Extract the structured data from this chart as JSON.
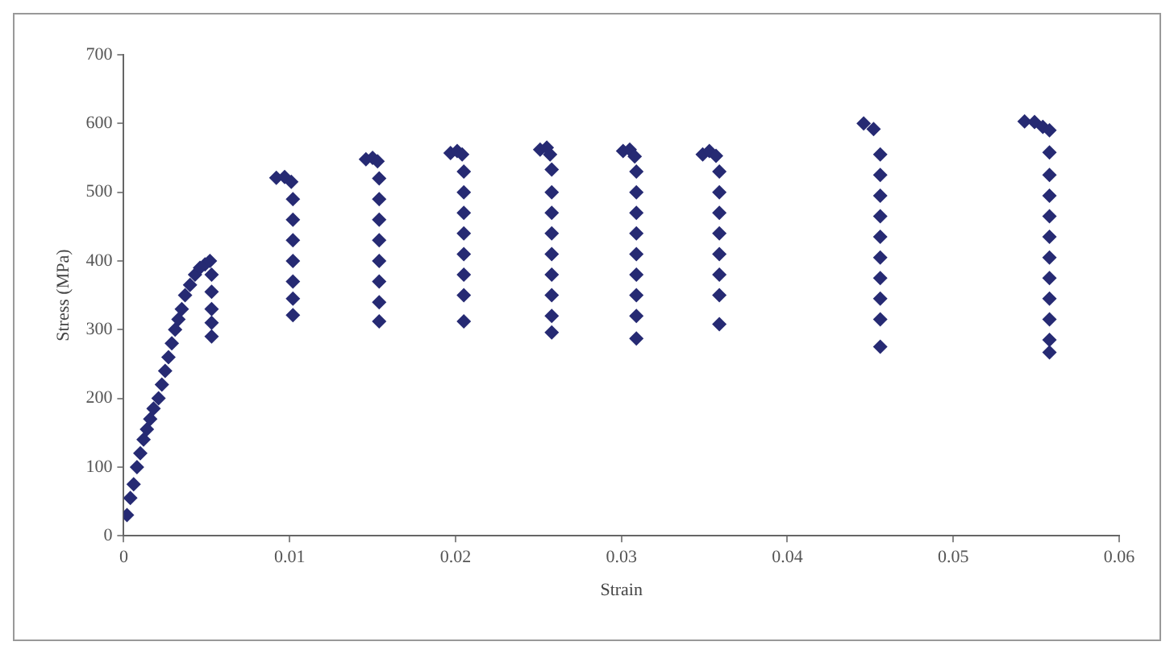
{
  "chart_data": {
    "type": "scatter",
    "xlabel": "Strain",
    "ylabel": "Stress (MPa)",
    "xlim": [
      0,
      0.06
    ],
    "xticks": [
      0,
      0.01,
      0.02,
      0.03,
      0.04,
      0.05,
      0.06
    ],
    "ylim": [
      0,
      700
    ],
    "yticks": [
      0,
      100,
      200,
      300,
      400,
      500,
      600,
      700
    ],
    "grid": false,
    "legend": false,
    "marker": "diamond",
    "series": [
      {
        "color": "#262a73",
        "x": [
          0.0002,
          0.0004,
          0.0006,
          0.0008,
          0.001,
          0.0012,
          0.0014,
          0.0016,
          0.0018,
          0.0021,
          0.0023,
          0.0025,
          0.0027,
          0.0029,
          0.0031,
          0.0033,
          0.0035,
          0.0037,
          0.004,
          0.0043,
          0.0046,
          0.0049,
          0.0052,
          0.0053,
          0.0053,
          0.0053,
          0.0053,
          0.0053,
          0.0092,
          0.0097,
          0.0101,
          0.0102,
          0.0102,
          0.0102,
          0.0102,
          0.0102,
          0.0102,
          0.0102,
          0.0146,
          0.015,
          0.0153,
          0.0154,
          0.0154,
          0.0154,
          0.0154,
          0.0154,
          0.0154,
          0.0154,
          0.0154,
          0.0197,
          0.0201,
          0.0204,
          0.0205,
          0.0205,
          0.0205,
          0.0205,
          0.0205,
          0.0205,
          0.0205,
          0.0205,
          0.0251,
          0.0255,
          0.0257,
          0.0258,
          0.0258,
          0.0258,
          0.0258,
          0.0258,
          0.0258,
          0.0258,
          0.0258,
          0.0258,
          0.0301,
          0.0305,
          0.0308,
          0.0309,
          0.0309,
          0.0309,
          0.0309,
          0.0309,
          0.0309,
          0.0309,
          0.0309,
          0.0309,
          0.0349,
          0.0353,
          0.0357,
          0.0359,
          0.0359,
          0.0359,
          0.0359,
          0.0359,
          0.0359,
          0.0359,
          0.0359,
          0.0446,
          0.0452,
          0.0456,
          0.0456,
          0.0456,
          0.0456,
          0.0456,
          0.0456,
          0.0456,
          0.0456,
          0.0456,
          0.0456,
          0.0543,
          0.0549,
          0.0554,
          0.0558,
          0.0558,
          0.0558,
          0.0558,
          0.0558,
          0.0558,
          0.0558,
          0.0558,
          0.0558,
          0.0558,
          0.0558,
          0.0558
        ],
        "values": [
          30,
          55,
          75,
          100,
          120,
          140,
          155,
          170,
          185,
          200,
          220,
          240,
          260,
          280,
          300,
          315,
          330,
          350,
          365,
          380,
          390,
          395,
          400,
          380,
          355,
          330,
          310,
          290,
          521,
          522,
          515,
          490,
          460,
          430,
          400,
          370,
          345,
          321,
          548,
          550,
          545,
          520,
          490,
          460,
          430,
          400,
          370,
          340,
          312,
          557,
          560,
          555,
          530,
          500,
          470,
          440,
          410,
          380,
          350,
          312,
          562,
          565,
          555,
          533,
          500,
          470,
          440,
          410,
          380,
          350,
          320,
          296,
          560,
          562,
          552,
          530,
          500,
          470,
          440,
          410,
          380,
          350,
          320,
          287,
          555,
          560,
          553,
          530,
          500,
          470,
          440,
          410,
          380,
          350,
          308,
          600,
          592,
          555,
          525,
          495,
          465,
          435,
          405,
          375,
          345,
          315,
          275,
          603,
          602,
          595,
          590,
          558,
          525,
          495,
          465,
          435,
          405,
          375,
          345,
          315,
          285,
          267
        ]
      }
    ]
  }
}
